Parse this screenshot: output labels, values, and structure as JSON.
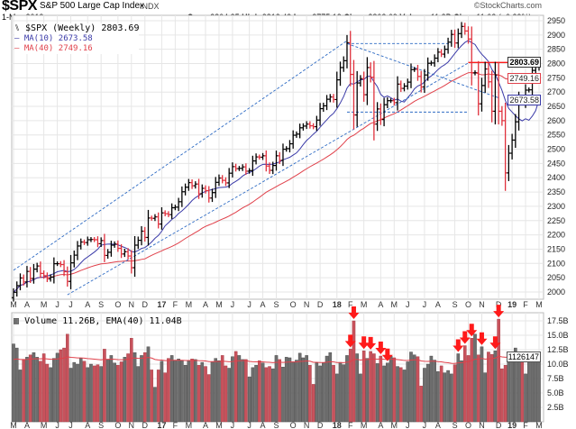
{
  "header": {
    "symbol": "$SPX",
    "name": "S&P 500 Large Cap Index",
    "exchange": "INDX",
    "watermark": "©StockCharts.com",
    "date": "1-Mar-2019",
    "open_label": "Open",
    "open": "2804.35",
    "high_label": "High",
    "high": "2813.49",
    "low_label": "Low",
    "low": "2775.13",
    "close_label": "Close",
    "close": "2803.69",
    "volume_label": "Volume",
    "volume": "11.3B",
    "chg_label": "Chg",
    "chg": "+11.02 (+0.39%)"
  },
  "legend": {
    "price": "$SPX (Weekly) 2803.69",
    "ma10": "MA(10) 2673.58",
    "ma40": "MA(40) 2749.16",
    "volume": "Volume 11.26B, EMA(40) 11.04B"
  },
  "tags": {
    "price": "2803.69",
    "ma40": "2749.16",
    "ma10": "2673.58",
    "volume": "1126147"
  },
  "colors": {
    "ma10": "#3a3aa8",
    "ma40": "#e0404a",
    "up_volume": "#6e6e6e",
    "down_volume": "#c8525c",
    "trendline": "#2e6bc4",
    "resistance": "#ff1a1a",
    "arrow": "#ff1a1a"
  },
  "chart_data": [
    {
      "type": "ohlc",
      "title": "$SPX (Weekly)",
      "start": "2016-03-04",
      "interval": "weekly",
      "y_scale": "linear",
      "ylim": [
        1950,
        2960
      ],
      "grid": true,
      "yticks": [
        2000,
        2050,
        2100,
        2150,
        2200,
        2250,
        2300,
        2350,
        2400,
        2450,
        2500,
        2550,
        2600,
        2650,
        2700,
        2750,
        2800,
        2850,
        2900,
        2950
      ],
      "last_bar": {
        "open": 2804.35,
        "high": 2813.49,
        "low": 2775.13,
        "close": 2803.69
      },
      "closes": [
        1999,
        2022,
        2049,
        2035,
        2072,
        2047,
        2080,
        2091,
        2065,
        2057,
        2046,
        2052,
        2099,
        2099,
        2096,
        2071,
        2037,
        2102,
        2129,
        2161,
        2175,
        2173,
        2183,
        2184,
        2183,
        2169,
        2180,
        2128,
        2139,
        2164,
        2168,
        2153,
        2133,
        2141,
        2126,
        2085,
        2164,
        2181,
        2213,
        2191,
        2259,
        2258,
        2263,
        2238,
        2277,
        2274,
        2271,
        2295,
        2297,
        2316,
        2351,
        2367,
        2383,
        2372,
        2378,
        2344,
        2363,
        2355,
        2329,
        2348,
        2384,
        2399,
        2391,
        2382,
        2416,
        2439,
        2432,
        2433,
        2438,
        2423,
        2425,
        2459,
        2473,
        2472,
        2477,
        2441,
        2426,
        2443,
        2477,
        2461,
        2500,
        2502,
        2519,
        2549,
        2553,
        2575,
        2581,
        2588,
        2582,
        2579,
        2602,
        2642,
        2652,
        2675,
        2683,
        2674,
        2743,
        2786,
        2810,
        2873,
        2762,
        2620,
        2732,
        2747,
        2691,
        2786,
        2752,
        2588,
        2641,
        2604,
        2656,
        2670,
        2670,
        2663,
        2728,
        2713,
        2721,
        2735,
        2779,
        2780,
        2755,
        2718,
        2760,
        2801,
        2802,
        2819,
        2840,
        2833,
        2850,
        2875,
        2902,
        2872,
        2905,
        2930,
        2914,
        2886,
        2767,
        2768,
        2659,
        2723,
        2781,
        2736,
        2633,
        2760,
        2633,
        2600,
        2417,
        2486,
        2532,
        2596,
        2671,
        2665,
        2707,
        2708,
        2776,
        2793,
        2804
      ],
      "overlays": [
        {
          "name": "MA(10)",
          "period": 10
        },
        {
          "name": "MA(40)",
          "period": 40
        }
      ],
      "annotations": [
        {
          "kind": "trend",
          "from": [
            "2016-03-04",
            2076
          ],
          "to": [
            "2018-01-26",
            2880
          ]
        },
        {
          "kind": "trend",
          "from": [
            "2016-06-24",
            1990
          ],
          "to": [
            "2018-10-05",
            2802
          ]
        },
        {
          "kind": "horizontal",
          "from": [
            "2018-01-26",
            2870
          ],
          "to": [
            "2018-08-31",
            2870
          ]
        },
        {
          "kind": "horizontal",
          "from": [
            "2018-01-26",
            2630
          ],
          "to": [
            "2018-10-05",
            2630
          ]
        },
        {
          "kind": "trend",
          "from": [
            "2018-01-26",
            2870
          ],
          "to": [
            "2018-12-07",
            2680
          ]
        },
        {
          "kind": "resistance",
          "from": [
            "2018-10-05",
            2803.69
          ],
          "to": [
            "2019-03-01",
            2803.69
          ]
        }
      ]
    },
    {
      "type": "bar",
      "title": "Volume",
      "units": "B",
      "ylim": [
        0,
        18.5
      ],
      "overlay": "EMA(40)",
      "yticks": [
        {
          "v": 2.5,
          "l": "2.5B"
        },
        {
          "v": 5,
          "l": "5.0B"
        },
        {
          "v": 7.5,
          "l": "7.5B"
        },
        {
          "v": 10,
          "l": "10.0B"
        },
        {
          "v": 12.5,
          "l": "12.5B"
        },
        {
          "v": 15,
          "l": "15.0B"
        },
        {
          "v": 17.5,
          "l": "17.5B"
        }
      ],
      "values": [
        13.5,
        12.8,
        9.0,
        10.8,
        11.2,
        11.6,
        12.0,
        11.2,
        10.5,
        11.8,
        10.0,
        9.4,
        11.0,
        11.9,
        12.5,
        12.8,
        15.2,
        9.3,
        10.3,
        10.0,
        11.0,
        10.5,
        9.4,
        10.0,
        9.7,
        9.9,
        9.6,
        12.6,
        10.8,
        11.5,
        10.2,
        9.8,
        10.4,
        11.2,
        11.8,
        14.5,
        12.0,
        9.6,
        11.5,
        12.0,
        13.0,
        9.0,
        6.0,
        9.0,
        10.5,
        8.5,
        11.0,
        11.5,
        10.6,
        10.9,
        10.6,
        9.8,
        10.5,
        10.9,
        10.8,
        9.8,
        10.3,
        9.6,
        8.2,
        10.4,
        11.0,
        10.6,
        11.5,
        9.7,
        9.3,
        11.3,
        12.2,
        11.5,
        10.8,
        10.8,
        7.8,
        9.4,
        9.8,
        10.6,
        10.2,
        9.4,
        9.6,
        9.2,
        11.5,
        10.8,
        9.5,
        11.2,
        11.1,
        10.4,
        10.7,
        11.9,
        11.1,
        11.5,
        9.8,
        6.5,
        10.2,
        9.7,
        10.2,
        11.4,
        12.0,
        9.8,
        8.3,
        10.3,
        9.9,
        11.5,
        12.6,
        17.5,
        11.8,
        8.3,
        12.3,
        11.0,
        12.2,
        11.8,
        10.1,
        11.4,
        9.7,
        10.2,
        11.4,
        11.1,
        9.6,
        9.4,
        9.0,
        10.4,
        12.1,
        11.6,
        11.3,
        6.2,
        9.3,
        10.0,
        11.4,
        10.7,
        8.7,
        9.7,
        8.5,
        8.9,
        8.3,
        9.9,
        11.8,
        10.6,
        13.2,
        11.5,
        14.5,
        15.2,
        11.6,
        13.0,
        8.5,
        12.1,
        11.7,
        12.3,
        17.8,
        9.2,
        9.8,
        11.8,
        11.8,
        12.8,
        11.3,
        11.2,
        8.3,
        11.3,
        10.9,
        11.0,
        11.3
      ],
      "arrows": [
        "2018-02-02",
        "2018-02-09",
        "2018-03-02",
        "2018-03-16",
        "2018-04-06",
        "2018-04-20",
        "2018-09-14",
        "2018-09-28",
        "2018-10-12",
        "2018-11-02",
        "2018-11-30",
        "2018-12-07"
      ]
    }
  ]
}
